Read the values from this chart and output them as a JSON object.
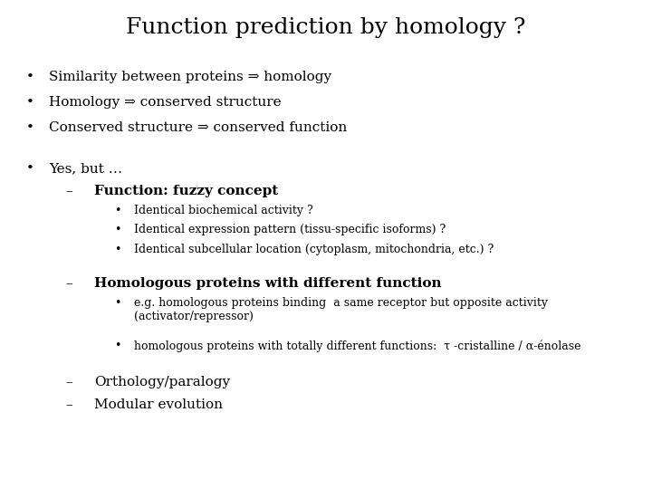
{
  "title": "Function prediction by homology ?",
  "background_color": "#ffffff",
  "text_color": "#000000",
  "title_fontsize": 18,
  "body_fontsize": 11,
  "small_fontsize": 9,
  "bullet1": "Similarity between proteins ⇒ homology",
  "bullet2": "Homology ⇒ conserved structure",
  "bullet3": "Conserved structure ⇒ conserved function",
  "bullet4": "Yes, but …",
  "sub1_bold": "Function: fuzzy concept",
  "sub1_b1": "Identical biochemical activity ?",
  "sub1_b2": "Identical expression pattern (tissu-specific isoforms) ?",
  "sub1_b3": "Identical subcellular location (cytoplasm, mitochondria, etc.) ?",
  "sub2_bold": "Homologous proteins with different function",
  "sub2_b1": "e.g. homologous proteins binding  a same receptor but opposite activity\n(activator/repressor)",
  "sub2_b2": "homologous proteins with totally different functions:  τ -cristalline / α-énolase",
  "sub3": "Orthology/paralogy",
  "sub4": "Modular evolution"
}
